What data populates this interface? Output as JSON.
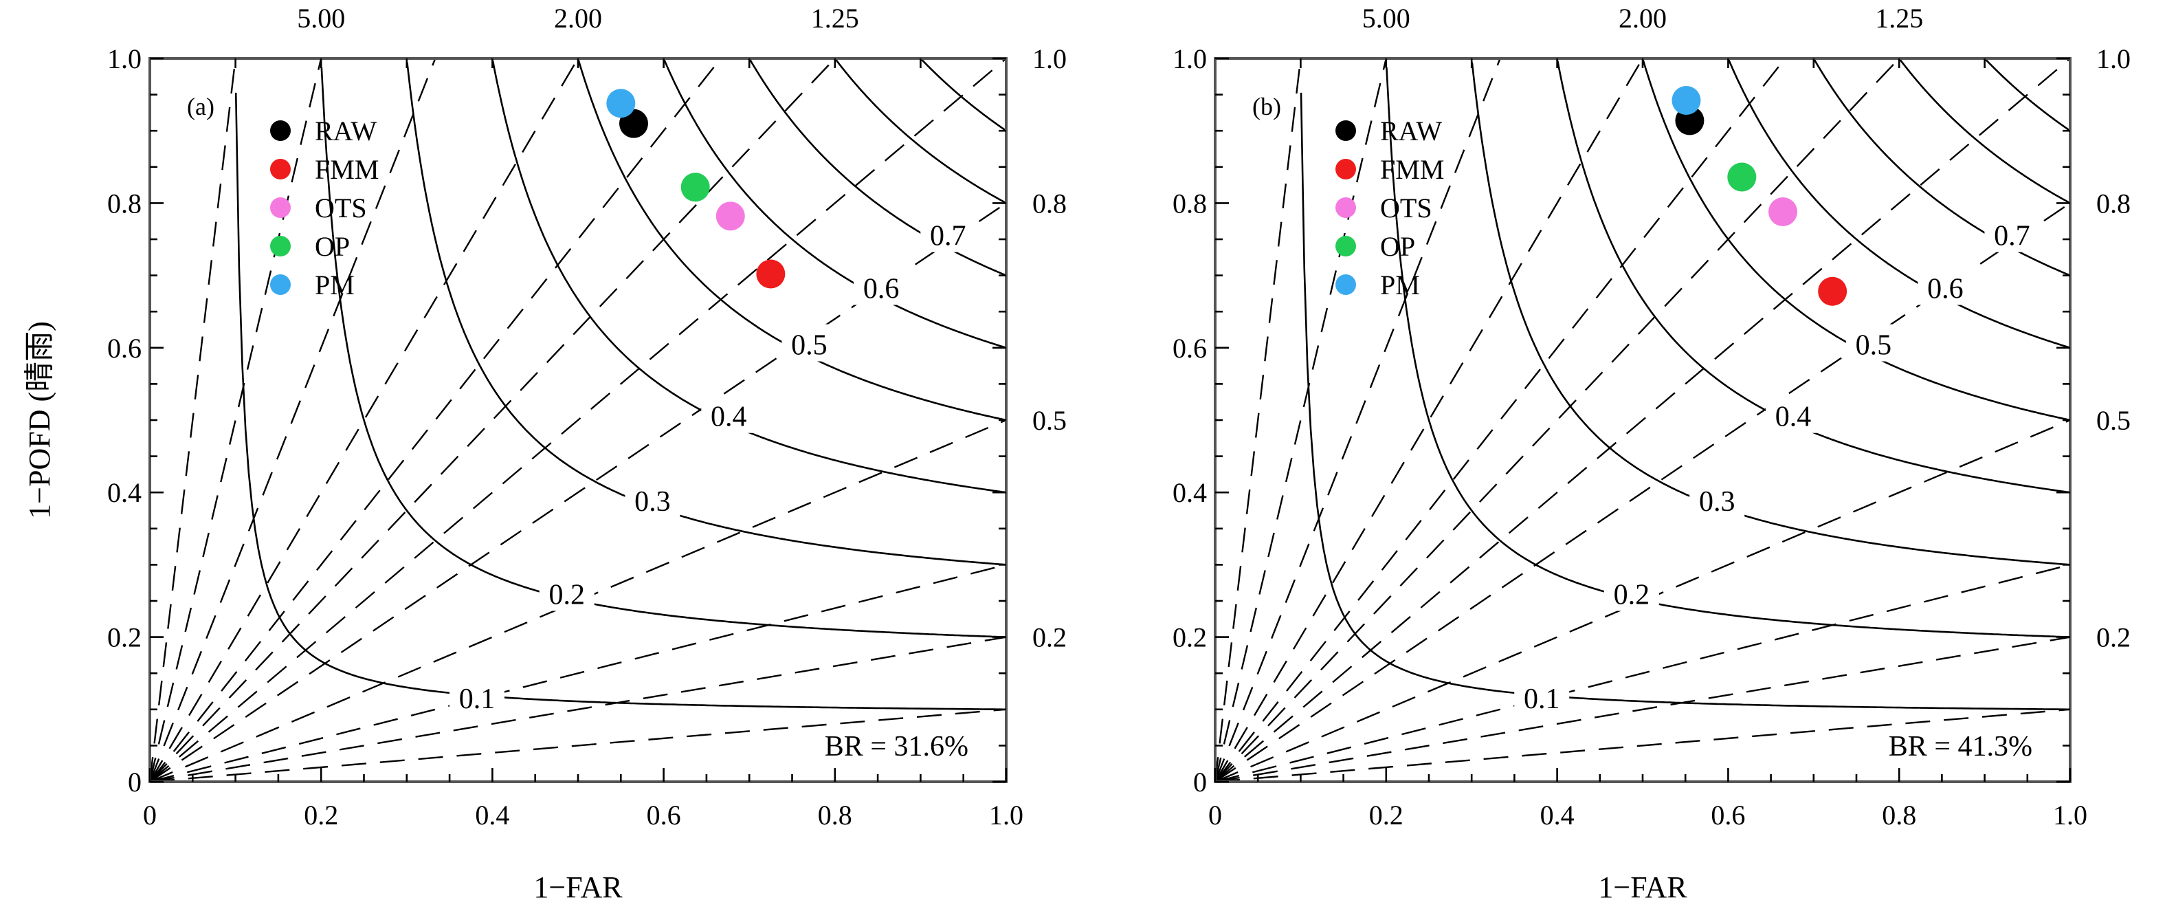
{
  "chart_data": [
    {
      "type": "scatter",
      "subtype": "performance-diagram",
      "panel_label": "(a)",
      "xlabel": "1−FAR",
      "ylabel": "1−POFD (晴雨)",
      "xlim": [
        0,
        1
      ],
      "ylim": [
        0,
        1
      ],
      "x_ticks": [
        "0",
        "0.2",
        "0.4",
        "0.6",
        "0.8",
        "1.0"
      ],
      "y_ticks": [
        "0",
        "0.2",
        "0.4",
        "0.6",
        "0.8",
        "1.0"
      ],
      "top_ticks": [
        "5.00",
        "2.00",
        "1.25"
      ],
      "right_ticks": [
        "0.2",
        "0.5",
        "0.8",
        "1.0"
      ],
      "csi_labels": [
        "0.1",
        "0.2",
        "0.3",
        "0.4",
        "0.5",
        "0.6",
        "0.7"
      ],
      "annotation": "BR = 31.6%",
      "legend_position": "top-left",
      "series": [
        {
          "name": "RAW",
          "color": "#000000",
          "x": 0.565,
          "y": 0.91
        },
        {
          "name": "FMM",
          "color": "#ee1c1c",
          "x": 0.725,
          "y": 0.702
        },
        {
          "name": "OTS",
          "color": "#f57ae0",
          "x": 0.678,
          "y": 0.782
        },
        {
          "name": "OP",
          "color": "#22cc55",
          "x": 0.637,
          "y": 0.822
        },
        {
          "name": "PM",
          "color": "#3aaaf0",
          "x": 0.55,
          "y": 0.938
        }
      ]
    },
    {
      "type": "scatter",
      "subtype": "performance-diagram",
      "panel_label": "(b)",
      "xlabel": "1−FAR",
      "ylabel": "",
      "xlim": [
        0,
        1
      ],
      "ylim": [
        0,
        1
      ],
      "x_ticks": [
        "0",
        "0.2",
        "0.4",
        "0.6",
        "0.8",
        "1.0"
      ],
      "y_ticks": [
        "0",
        "0.2",
        "0.4",
        "0.6",
        "0.8",
        "1.0"
      ],
      "top_ticks": [
        "5.00",
        "2.00",
        "1.25"
      ],
      "right_ticks": [
        "0.2",
        "0.5",
        "0.8",
        "1.0"
      ],
      "csi_labels": [
        "0.1",
        "0.2",
        "0.3",
        "0.4",
        "0.5",
        "0.6",
        "0.7"
      ],
      "annotation": "BR = 41.3%",
      "legend_position": "top-left",
      "series": [
        {
          "name": "RAW",
          "color": "#000000",
          "x": 0.555,
          "y": 0.914
        },
        {
          "name": "FMM",
          "color": "#ee1c1c",
          "x": 0.722,
          "y": 0.678
        },
        {
          "name": "OTS",
          "color": "#f57ae0",
          "x": 0.664,
          "y": 0.788
        },
        {
          "name": "OP",
          "color": "#22cc55",
          "x": 0.616,
          "y": 0.836
        },
        {
          "name": "PM",
          "color": "#3aaaf0",
          "x": 0.551,
          "y": 0.942
        }
      ]
    }
  ]
}
